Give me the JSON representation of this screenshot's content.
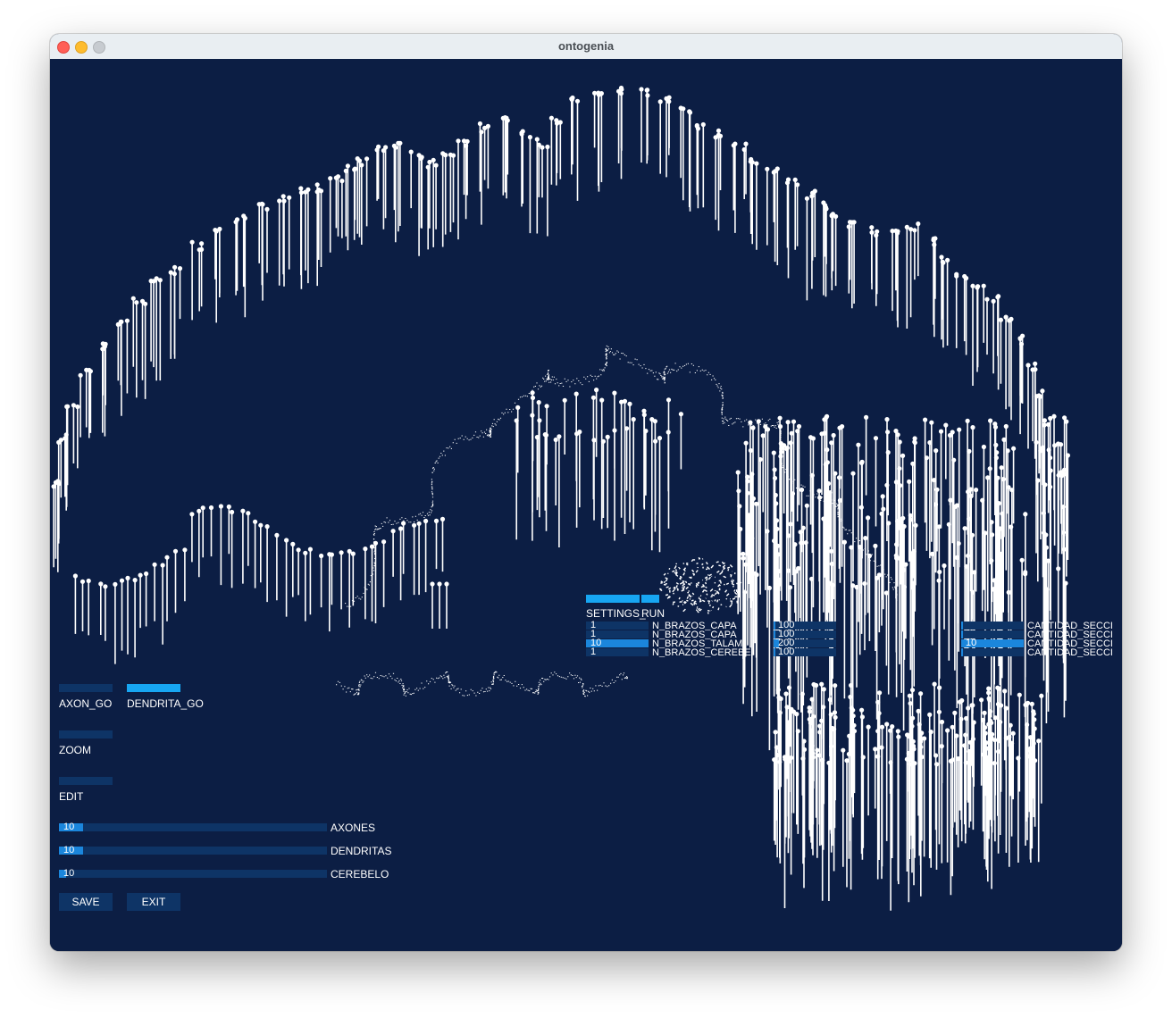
{
  "window": {
    "title": "ontogenia"
  },
  "colors": {
    "background": "#0c1e44",
    "control": "#0e3466",
    "active": "#17a6f2",
    "fill": "#1b86dc",
    "strokes": "#ffffff"
  },
  "toggles": {
    "axon_go": {
      "label": "AXON_GO",
      "active": false
    },
    "dendrita_go": {
      "label": "DENDRITA_GO",
      "active": true
    },
    "zoom": {
      "label": "ZOOM",
      "active": false
    },
    "edit": {
      "label": "EDIT",
      "active": false
    }
  },
  "sliders": [
    {
      "label": "AXONES",
      "value": "10",
      "fraction": 0.09
    },
    {
      "label": "DENDRITAS",
      "value": "10",
      "fraction": 0.09
    },
    {
      "label": "CEREBELO",
      "value": "10",
      "fraction": 0.025
    }
  ],
  "buttons": {
    "save": "SAVE",
    "exit": "EXIT"
  },
  "overlay": {
    "settings_label": "SETTINGS_",
    "run_label": "RUN",
    "rows": [
      {
        "value": "1",
        "label": "N_BRAZOS_CAPA",
        "value2": "100",
        "cantidad": "CANTIDAD_SECCI",
        "level": 0.0
      },
      {
        "value": "1",
        "label": "N_BRAZOS_CAPA",
        "value2": "100",
        "cantidad": "CANTIDAD_SECCI",
        "level": 0.0
      },
      {
        "value": "10",
        "label": "N_BRAZOS_TALAM",
        "value2": "200",
        "cantidad": "CANTIDAD_SECCI",
        "value3": "10",
        "level": 1.0
      },
      {
        "value": "1",
        "label": "N_BRAZOS_CEREBE",
        "value2": "100",
        "cantidad": "CANTIDAD_SECCI",
        "level": 0.0
      }
    ]
  }
}
